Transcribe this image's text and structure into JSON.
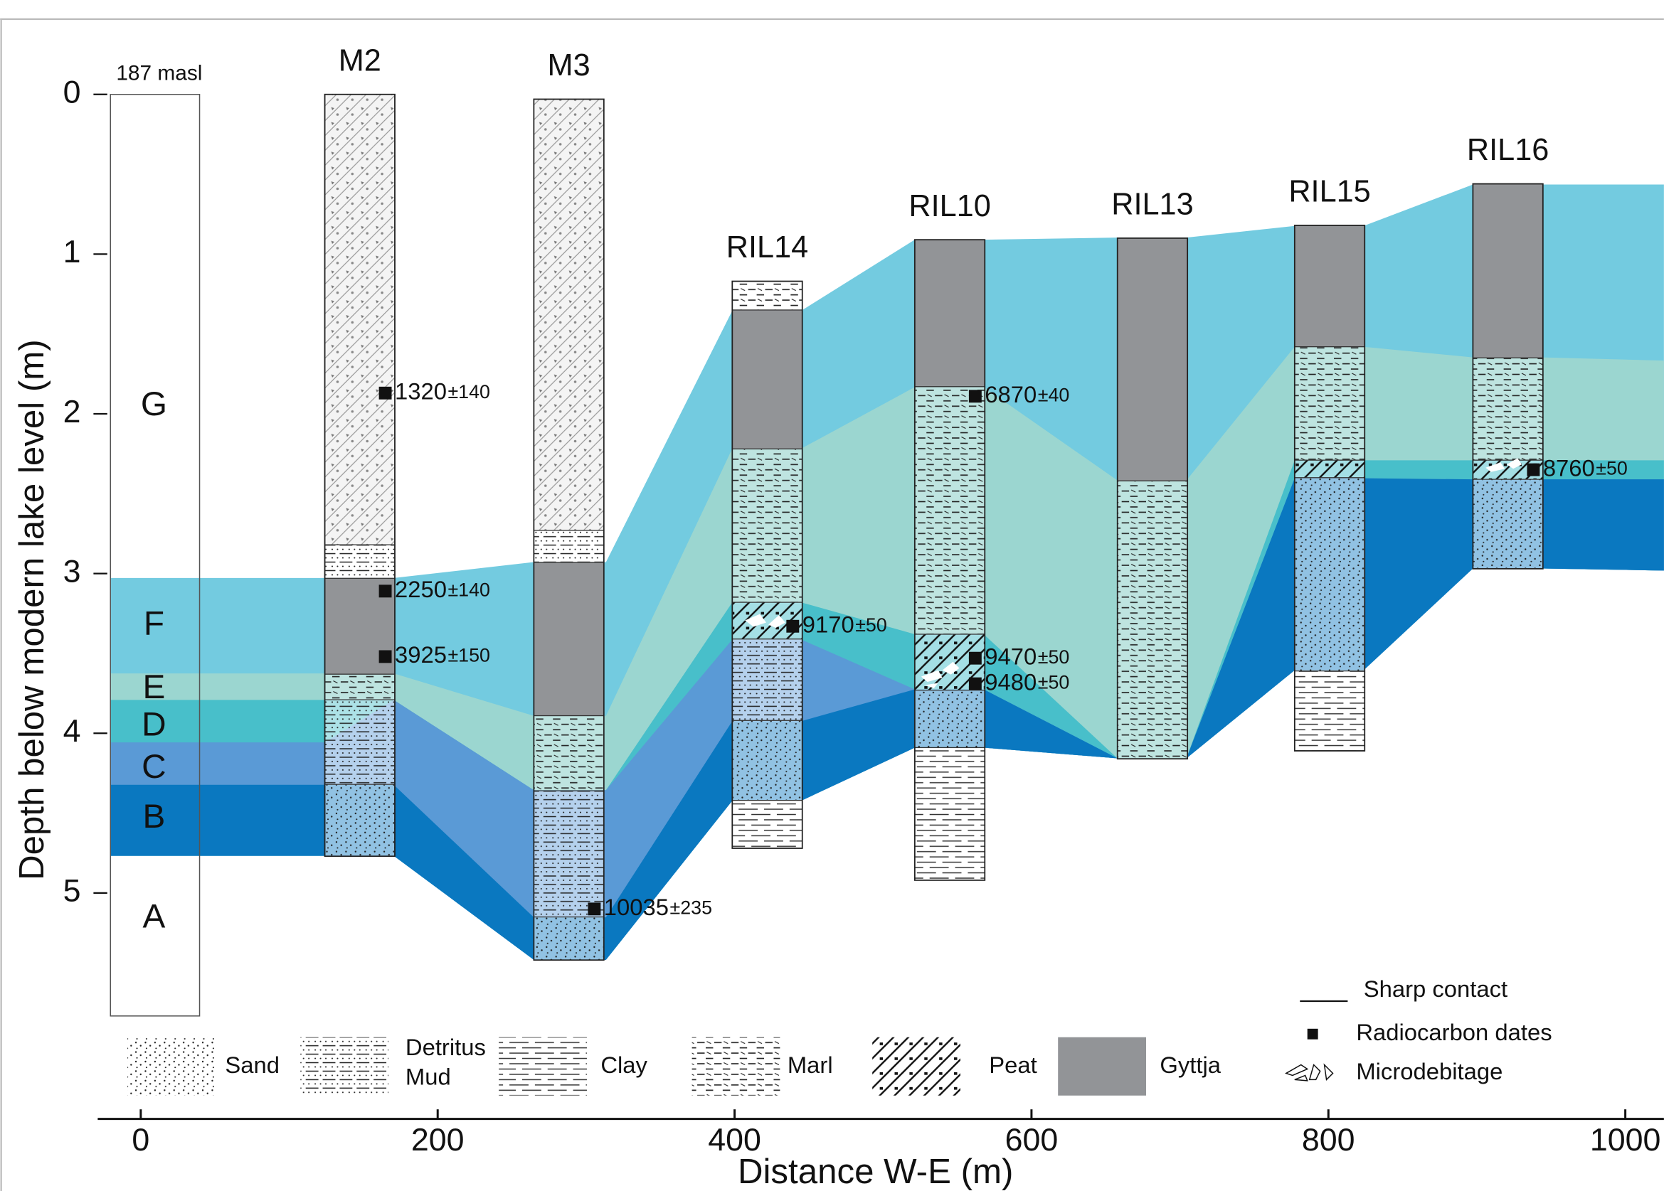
{
  "y_axis": {
    "label": "Depth below modern lake level (m)",
    "ylim": [
      0,
      5
    ],
    "yticks": [
      0,
      1,
      2,
      3,
      4,
      5
    ]
  },
  "x_axis": {
    "label": "Distance W-E (m)",
    "xlim": [
      -29,
      1026
    ],
    "xticks": [
      0,
      200,
      400,
      600,
      800,
      1000
    ]
  },
  "reference_column": {
    "label": "187 masl",
    "top": 0,
    "bottom": 5.77,
    "units": [
      "G",
      "F",
      "E",
      "D",
      "C",
      "B",
      "A"
    ]
  },
  "cores": [
    {
      "name": "M2",
      "segments": [
        {
          "top": 0,
          "bottom": 2.82,
          "lith": null
        },
        {
          "top": 2.82,
          "bottom": 3.03,
          "lith": 1
        },
        {
          "top": 3.03,
          "bottom": 3.63,
          "lith": 5
        },
        {
          "top": 3.63,
          "bottom": 3.79,
          "lith": 3
        },
        {
          "top": 3.79,
          "bottom": 4.32,
          "lith": 1
        },
        {
          "top": 4.32,
          "bottom": 4.77,
          "lith": 0
        }
      ],
      "dates": [
        {
          "depth": 1.87,
          "age": "1320",
          "error": "±140"
        },
        {
          "depth": 3.11,
          "age": "2250",
          "error": "±140"
        },
        {
          "depth": 3.52,
          "age": "3925",
          "error": "±150"
        }
      ]
    },
    {
      "name": "M3",
      "segments": [
        {
          "top": 0.03,
          "bottom": 2.73,
          "lith": null
        },
        {
          "top": 2.73,
          "bottom": 2.93,
          "lith": 1
        },
        {
          "top": 2.93,
          "bottom": 3.89,
          "lith": 5
        },
        {
          "top": 3.89,
          "bottom": 4.36,
          "lith": 3
        },
        {
          "top": 4.36,
          "bottom": 5.15,
          "lith": 1
        },
        {
          "top": 5.15,
          "bottom": 5.42,
          "lith": 0
        }
      ],
      "dates": [
        {
          "depth": 5.1,
          "age": "10035",
          "error": "±235"
        }
      ]
    },
    {
      "name": "RIL14",
      "segments": [
        {
          "top": 1.17,
          "bottom": 1.35,
          "lith": 3
        },
        {
          "top": 1.35,
          "bottom": 2.22,
          "lith": 5
        },
        {
          "top": 2.22,
          "bottom": 3.18,
          "lith": 3
        },
        {
          "top": 3.18,
          "bottom": 3.41,
          "lith": 4
        },
        {
          "top": 3.41,
          "bottom": 3.92,
          "lith": 1
        },
        {
          "top": 3.92,
          "bottom": 4.42,
          "lith": 0
        },
        {
          "top": 4.42,
          "bottom": 4.72,
          "lith": 2
        }
      ],
      "dates": [
        {
          "depth": 3.33,
          "age": "9170",
          "error": "±50"
        }
      ]
    },
    {
      "name": "RIL10",
      "segments": [
        {
          "top": 0.91,
          "bottom": 1.83,
          "lith": 5
        },
        {
          "top": 1.83,
          "bottom": 3.38,
          "lith": 3
        },
        {
          "top": 3.38,
          "bottom": 3.73,
          "lith": 4
        },
        {
          "top": 3.73,
          "bottom": 4.09,
          "lith": 0
        },
        {
          "top": 4.09,
          "bottom": 4.92,
          "lith": 2
        }
      ],
      "dates": [
        {
          "depth": 1.89,
          "age": "6870",
          "error": "±40"
        },
        {
          "depth": 3.53,
          "age": "9470",
          "error": "±50"
        },
        {
          "depth": 3.69,
          "age": "9480",
          "error": "±50"
        }
      ]
    },
    {
      "name": "RIL13",
      "segments": [
        {
          "top": 0.9,
          "bottom": 2.42,
          "lith": 5
        },
        {
          "top": 2.42,
          "bottom": 4.16,
          "lith": 3
        }
      ],
      "dates": []
    },
    {
      "name": "RIL15",
      "segments": [
        {
          "top": 0.82,
          "bottom": 1.58,
          "lith": 5
        },
        {
          "top": 1.58,
          "bottom": 2.29,
          "lith": 3
        },
        {
          "top": 2.29,
          "bottom": 2.4,
          "lith": 4
        },
        {
          "top": 2.4,
          "bottom": 3.61,
          "lith": 0
        },
        {
          "top": 3.61,
          "bottom": 4.11,
          "lith": 2
        }
      ],
      "dates": []
    },
    {
      "name": "RIL16",
      "segments": [
        {
          "top": 0.56,
          "bottom": 1.65,
          "lith": 5
        },
        {
          "top": 1.65,
          "bottom": 2.29,
          "lith": 3
        },
        {
          "top": 2.29,
          "bottom": 2.41,
          "lith": 4
        },
        {
          "top": 2.41,
          "bottom": 2.97,
          "lith": 0
        }
      ],
      "dates": [
        {
          "depth": 2.35,
          "age": "8760",
          "error": "±50"
        }
      ]
    }
  ],
  "legend": {
    "lithology": [
      {
        "label": "Sand"
      },
      {
        "label": [
          "Detritus",
          "Mud"
        ]
      },
      {
        "label": "Clay"
      },
      {
        "label": "Marl"
      },
      {
        "label": "Peat"
      },
      {
        "label": "Gyttja"
      }
    ],
    "symbols": [
      "Sharp contact",
      "Radiocarbon dates",
      "Microdebitage"
    ]
  }
}
